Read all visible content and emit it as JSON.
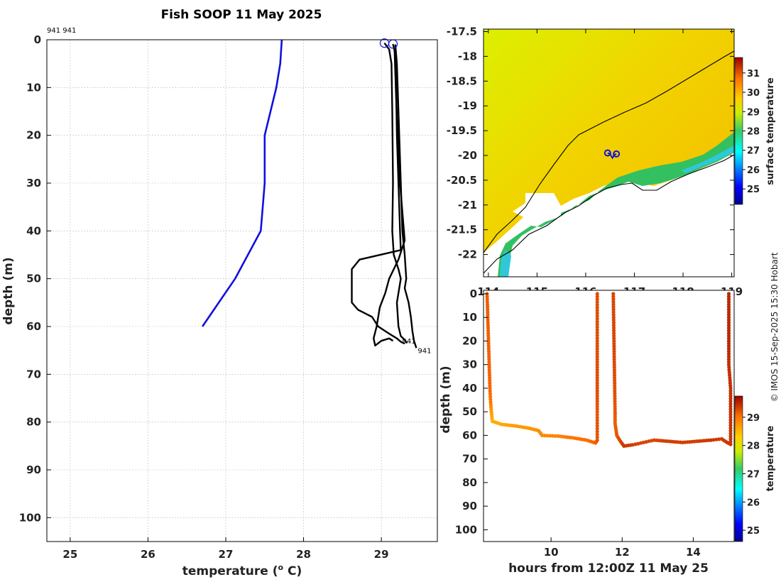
{
  "title": "Fish SOOP 11 May 2025",
  "credit": "© IMOS 15-Sep-2025 15:30 Hobart",
  "colors": {
    "blue": "#1010e0",
    "black": "#000000"
  },
  "chart_data": [
    {
      "type": "line",
      "name": "profile",
      "xlabel": "temperature (o C)",
      "xlabel_main": "temperature (",
      "xlabel_sup": "o",
      "xlabel_end": " C)",
      "ylabel": "depth (m)",
      "xlim": [
        24.7,
        29.72
      ],
      "ylim": [
        0,
        105
      ],
      "xticks": [
        25,
        26,
        27,
        28,
        29
      ],
      "yticks": [
        0,
        10,
        20,
        30,
        40,
        50,
        60,
        70,
        80,
        90,
        100
      ],
      "top_label": "941 941",
      "end_labels": [
        {
          "text": "941",
          "x": 29.25,
          "y": 63.0
        },
        {
          "text": "941",
          "x": 29.45,
          "y": 65.0
        }
      ],
      "circles": [
        {
          "x": 29.04,
          "y": 0.7
        },
        {
          "x": 29.15,
          "y": 0.9
        }
      ],
      "series": [
        {
          "name": "climatology",
          "color": "#1010e0",
          "points": [
            [
              27.72,
              0
            ],
            [
              27.7,
              5
            ],
            [
              27.65,
              10
            ],
            [
              27.5,
              20
            ],
            [
              27.5,
              30
            ],
            [
              27.45,
              40
            ],
            [
              27.12,
              50
            ],
            [
              26.7,
              60
            ]
          ]
        },
        {
          "name": "track-a",
          "color": "#000000",
          "points": [
            [
              29.04,
              0.7
            ],
            [
              29.1,
              2
            ],
            [
              29.13,
              5
            ],
            [
              29.14,
              15
            ],
            [
              29.15,
              30
            ],
            [
              29.14,
              40
            ],
            [
              29.16,
              45
            ],
            [
              29.22,
              48
            ],
            [
              29.25,
              50
            ],
            [
              29.2,
              55
            ],
            [
              29.22,
              60
            ],
            [
              29.25,
              62
            ],
            [
              29.3,
              62.8
            ],
            [
              29.33,
              63.5
            ]
          ]
        },
        {
          "name": "track-b",
          "color": "#000000",
          "points": [
            [
              29.15,
              0.9
            ],
            [
              29.18,
              3
            ],
            [
              29.19,
              10
            ],
            [
              29.2,
              20
            ],
            [
              29.22,
              30
            ],
            [
              29.24,
              40
            ],
            [
              29.25,
              44
            ],
            [
              28.72,
              46
            ],
            [
              28.62,
              48
            ],
            [
              28.62,
              55
            ],
            [
              28.7,
              56.5
            ],
            [
              28.88,
              58
            ],
            [
              28.96,
              60
            ],
            [
              29.1,
              61.5
            ],
            [
              29.2,
              62.5
            ],
            [
              29.25,
              63.2
            ],
            [
              29.3,
              63.6
            ]
          ]
        },
        {
          "name": "track-c",
          "color": "#000000",
          "points": [
            [
              29.18,
              1
            ],
            [
              29.2,
              5
            ],
            [
              29.22,
              15
            ],
            [
              29.25,
              30
            ],
            [
              29.27,
              40
            ],
            [
              29.3,
              45
            ],
            [
              29.32,
              50
            ],
            [
              29.3,
              52
            ],
            [
              29.35,
              55
            ],
            [
              29.38,
              58
            ],
            [
              29.4,
              61
            ],
            [
              29.42,
              63
            ],
            [
              29.45,
              64.5
            ]
          ]
        },
        {
          "name": "track-d",
          "color": "#000000",
          "points": [
            [
              29.17,
              2
            ],
            [
              29.19,
              12
            ],
            [
              29.23,
              28
            ],
            [
              29.3,
              42
            ],
            [
              29.22,
              46
            ],
            [
              29.1,
              50
            ],
            [
              29.05,
              53
            ],
            [
              28.98,
              56
            ],
            [
              28.94,
              60
            ],
            [
              28.9,
              62.5
            ],
            [
              28.92,
              64
            ],
            [
              29.0,
              63
            ],
            [
              29.1,
              62.5
            ],
            [
              29.15,
              63
            ]
          ]
        }
      ]
    },
    {
      "type": "heatmap",
      "name": "surface temperature map",
      "xlim": [
        113.9,
        119.05
      ],
      "ylim": [
        -22.45,
        -17.45
      ],
      "xticks": [
        114,
        115,
        116,
        117,
        118,
        119
      ],
      "xtick_labels": [
        "114",
        "115",
        "116",
        "117",
        "118",
        "119"
      ],
      "yticks": [
        -17.5,
        -18,
        -18.5,
        -19,
        -19.5,
        -20,
        -20.5,
        -21,
        -21.5,
        -22
      ],
      "colorbar_label": "surface temperature",
      "colorbar_ticks": [
        25,
        26,
        27,
        28,
        29,
        30,
        31
      ],
      "colorbar_range": [
        24.2,
        31.8
      ],
      "track_points": [
        [
          116.45,
          -19.95
        ],
        [
          116.5,
          -19.97
        ],
        [
          116.55,
          -20.05
        ],
        [
          116.6,
          -19.98
        ],
        [
          116.63,
          -19.97
        ]
      ]
    },
    {
      "type": "scatter",
      "name": "time-depth section",
      "xlabel": "hours from 12:00Z 11 May 25",
      "ylabel": "depth (m)",
      "xlim": [
        8.1,
        15.15
      ],
      "ylim": [
        -1.5,
        105
      ],
      "xticks": [
        10,
        12,
        14
      ],
      "yticks": [
        0,
        10,
        20,
        30,
        40,
        50,
        60,
        70,
        80,
        90,
        100
      ],
      "colorbar_label": "temperature",
      "colorbar_ticks": [
        25,
        26,
        27,
        28,
        29
      ],
      "colorbar_range": [
        24.6,
        29.75
      ],
      "casts": [
        {
          "points": [
            [
              8.2,
              0,
              29.15
            ],
            [
              8.22,
              10,
              29.15
            ],
            [
              8.24,
              20,
              29.13
            ],
            [
              8.26,
              30,
              29.12
            ],
            [
              8.28,
              40,
              29.1
            ],
            [
              8.3,
              46,
              29.0
            ],
            [
              8.32,
              50,
              28.7
            ],
            [
              8.35,
              54,
              28.55
            ],
            [
              8.6,
              55.3,
              28.6
            ],
            [
              9.0,
              56,
              28.7
            ],
            [
              9.4,
              57,
              28.75
            ],
            [
              9.65,
              58,
              28.8
            ],
            [
              9.75,
              60,
              28.85
            ],
            [
              10.2,
              60.3,
              28.9
            ],
            [
              10.6,
              61,
              29.0
            ],
            [
              11.0,
              62,
              29.05
            ],
            [
              11.25,
              63.2,
              29.1
            ],
            [
              11.3,
              62,
              29.2
            ],
            [
              11.3,
              50,
              29.2
            ],
            [
              11.3,
              40,
              29.25
            ],
            [
              11.3,
              30,
              29.25
            ],
            [
              11.3,
              20,
              29.25
            ],
            [
              11.3,
              0,
              29.25
            ]
          ]
        },
        {
          "points": [
            [
              11.75,
              0,
              29.3
            ],
            [
              11.76,
              10,
              29.3
            ],
            [
              11.77,
              20,
              29.3
            ],
            [
              11.78,
              30,
              29.28
            ],
            [
              11.79,
              40,
              29.25
            ],
            [
              11.8,
              50,
              29.2
            ],
            [
              11.8,
              55,
              29.15
            ],
            [
              11.85,
              60,
              29.2
            ],
            [
              11.95,
              62.5,
              29.3
            ],
            [
              12.05,
              64.5,
              29.4
            ],
            [
              12.3,
              64,
              29.35
            ],
            [
              12.6,
              63,
              29.3
            ],
            [
              12.9,
              62,
              29.3
            ],
            [
              13.3,
              62.5,
              29.35
            ],
            [
              13.7,
              63,
              29.35
            ],
            [
              14.1,
              62.5,
              29.35
            ],
            [
              14.5,
              62,
              29.4
            ],
            [
              14.8,
              61.5,
              29.35
            ],
            [
              14.95,
              63,
              29.4
            ],
            [
              15.05,
              63.8,
              29.4
            ],
            [
              15.05,
              50,
              29.45
            ],
            [
              15.05,
              40,
              29.45
            ],
            [
              15.0,
              30,
              29.45
            ],
            [
              15.0,
              20,
              29.5
            ],
            [
              15.0,
              10,
              29.5
            ],
            [
              15.0,
              0,
              29.5
            ]
          ]
        }
      ]
    }
  ]
}
